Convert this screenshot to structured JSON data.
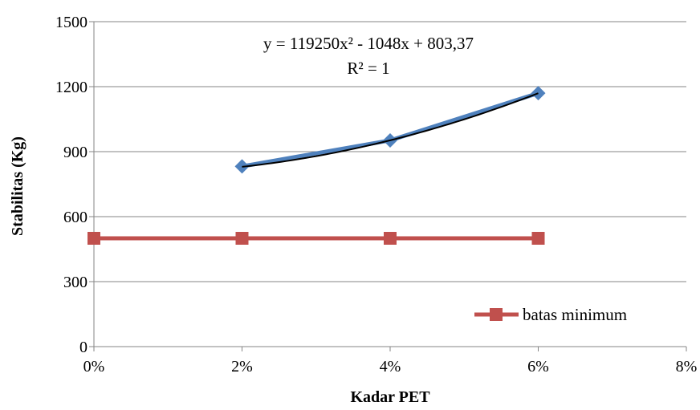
{
  "chart_data": {
    "type": "line",
    "xlabel": "Kadar PET",
    "ylabel": "Stabilitas (Kg)",
    "xlim": [
      0,
      0.08
    ],
    "ylim": [
      0,
      1500
    ],
    "x_ticks": [
      {
        "value": 0,
        "label": "0%"
      },
      {
        "value": 0.02,
        "label": "2%"
      },
      {
        "value": 0.04,
        "label": "4%"
      },
      {
        "value": 0.06,
        "label": "6%"
      },
      {
        "value": 0.08,
        "label": "8%"
      }
    ],
    "y_ticks": [
      {
        "value": 0,
        "label": "0"
      },
      {
        "value": 300,
        "label": "300"
      },
      {
        "value": 600,
        "label": "600"
      },
      {
        "value": 900,
        "label": "900"
      },
      {
        "value": 1200,
        "label": "1200"
      },
      {
        "value": 1500,
        "label": "1500"
      }
    ],
    "grid": "horizontal",
    "legend_position": "bottom-right",
    "series": [
      {
        "key": "stability",
        "marker": "diamond",
        "color": "#4F81BD",
        "x": [
          0.02,
          0.04,
          0.06
        ],
        "y": [
          832,
          952,
          1170
        ]
      },
      {
        "key": "minimum",
        "name": "batas minimum",
        "marker": "square",
        "color": "#C0504D",
        "x": [
          0,
          0.02,
          0.04,
          0.06
        ],
        "y": [
          500,
          500,
          500,
          500
        ]
      }
    ],
    "trendline": {
      "color": "#000000",
      "x_from": 0.02,
      "x_to": 0.06,
      "a": 119250,
      "b": -1048,
      "c": 803.37,
      "equation": "y = 119250x² - 1048x + 803,37",
      "r2": "R² = 1"
    }
  }
}
